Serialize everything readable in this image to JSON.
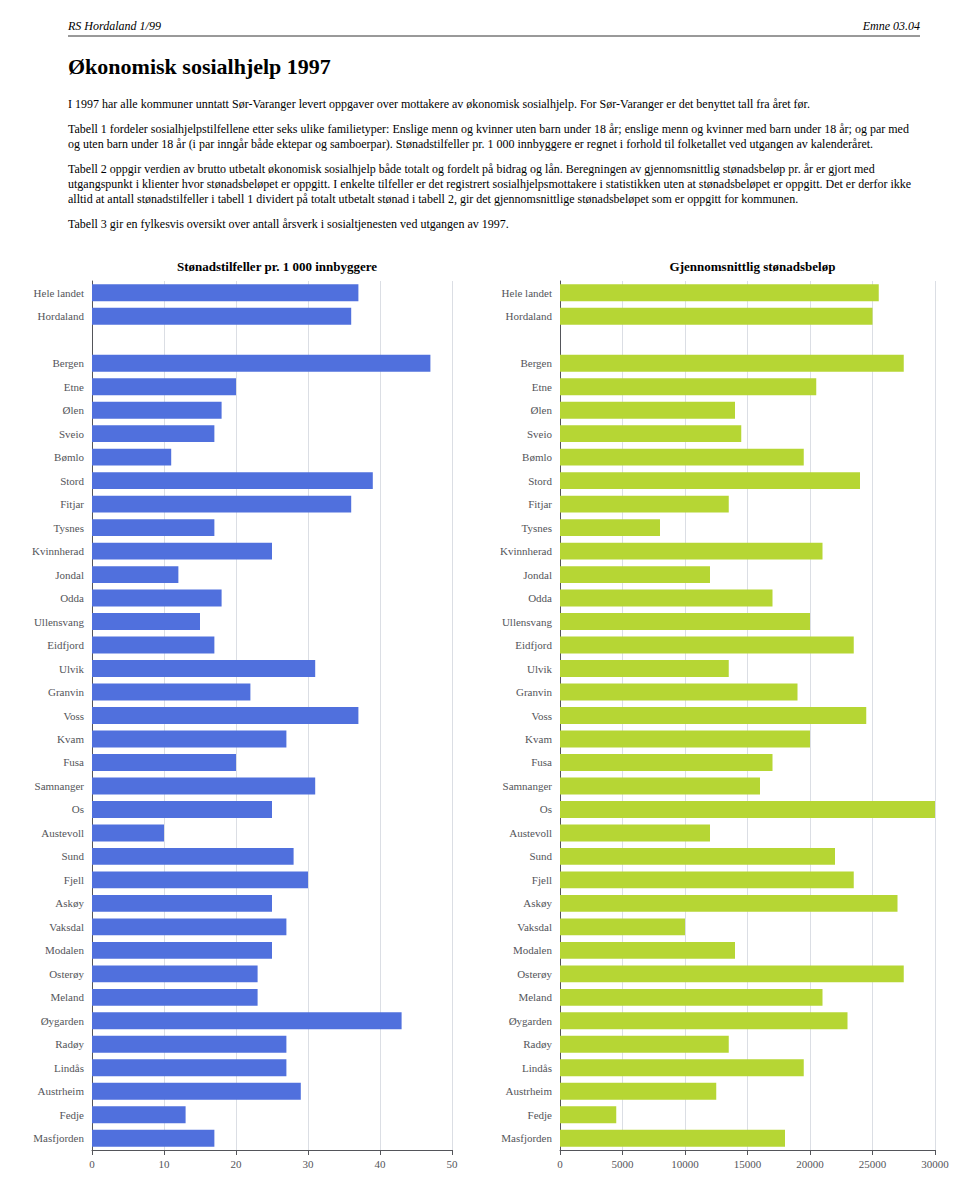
{
  "title": "Økonomisk sosialhjelp 1997",
  "annotations": [
    "RS Hordaland 1/99",
    "Emne 03.04",
    "I 1997 har alle kommuner unntatt Sør-Varanger levert oppgaver over mottakere av økonomisk sosialhjelp. For Sør-Varanger er det benyttet tall fra året før.",
    "Tabell 1 fordeler sosialhjelpstilfellene etter seks ulike familietyper: Enslige menn og kvinner uten barn under 18 år; enslige menn og kvinner med barn under 18 år; og par med og uten barn under 18 år (i par inngår både ektepar og samboerpar). Stønadstilfeller pr. 1 000 innbyggere er regnet i forhold til folketallet ved utgangen av kalenderåret.",
    "Tabell 2 oppgir verdien av brutto utbetalt økonomisk sosialhjelp både totalt og fordelt på bidrag og lån. Beregningen av gjennomsnittlig stønadsbeløp pr. år er gjort med utgangspunkt i klienter hvor stønadsbeløpet er oppgitt. I enkelte tilfeller er det registrert sosialhjelpsmottakere i statistikken uten at stønadsbeløpet er oppgitt. Det er derfor ikke alltid at antall stønadstilfeller i tabell 1 dividert på totalt utbetalt stønad i tabell 2, gir det gjennomsnittlige stønadsbeløpet som er oppgitt for kommunen.",
    "Tabell 3 gir en fylkesvis oversikt over antall årsverk i sosialtjenesten ved utgangen av 1997."
  ],
  "chart_data": [
    {
      "type": "bar",
      "orientation": "horizontal",
      "title": "Stønadstilfeller pr. 1 000 innbyggere",
      "categories": [
        "Hele landet",
        "Hordaland",
        null,
        "Bergen",
        "Etne",
        "Ølen",
        "Sveio",
        "Bømlo",
        "Stord",
        "Fitjar",
        "Tysnes",
        "Kvinnherad",
        "Jondal",
        "Odda",
        "Ullensvang",
        "Eidfjord",
        "Ulvik",
        "Granvin",
        "Voss",
        "Kvam",
        "Fusa",
        "Samnanger",
        "Os",
        "Austevoll",
        "Sund",
        "Fjell",
        "Askøy",
        "Vaksdal",
        "Modalen",
        "Osterøy",
        "Meland",
        "Øygarden",
        "Radøy",
        "Lindås",
        "Austrheim",
        "Fedje",
        "Masfjorden"
      ],
      "values": [
        37,
        36,
        null,
        47,
        20,
        18,
        17,
        11,
        39,
        36,
        17,
        25,
        12,
        18,
        15,
        17,
        31,
        22,
        37,
        27,
        20,
        31,
        25,
        10,
        28,
        30,
        25,
        27,
        25,
        23,
        23,
        43,
        27,
        27,
        29,
        13,
        17
      ],
      "xlim": [
        0,
        50
      ],
      "xticks": [
        0,
        10,
        20,
        30,
        40,
        50
      ],
      "grid": true
    },
    {
      "type": "bar",
      "orientation": "horizontal",
      "title": "Gjennomsnittlig stønadsbeløp",
      "categories": [
        "Hele landet",
        "Hordaland",
        null,
        "Bergen",
        "Etne",
        "Ølen",
        "Sveio",
        "Bømlo",
        "Stord",
        "Fitjar",
        "Tysnes",
        "Kvinnherad",
        "Jondal",
        "Odda",
        "Ullensvang",
        "Eidfjord",
        "Ulvik",
        "Granvin",
        "Voss",
        "Kvam",
        "Fusa",
        "Samnanger",
        "Os",
        "Austevoll",
        "Sund",
        "Fjell",
        "Askøy",
        "Vaksdal",
        "Modalen",
        "Osterøy",
        "Meland",
        "Øygarden",
        "Radøy",
        "Lindås",
        "Austrheim",
        "Fedje",
        "Masfjorden"
      ],
      "values": [
        25500,
        25000,
        null,
        27500,
        20500,
        14000,
        14500,
        19500,
        24000,
        13500,
        8000,
        21000,
        12000,
        17000,
        20000,
        23500,
        13500,
        19000,
        24500,
        20000,
        17000,
        16000,
        30000,
        12000,
        22000,
        23500,
        27000,
        10000,
        14000,
        27500,
        21000,
        23000,
        13500,
        19500,
        12500,
        4500,
        18000
      ],
      "xlim": [
        0,
        30000
      ],
      "xticks": [
        0,
        5000,
        10000,
        15000,
        20000,
        25000,
        30000
      ],
      "grid": true
    }
  ]
}
